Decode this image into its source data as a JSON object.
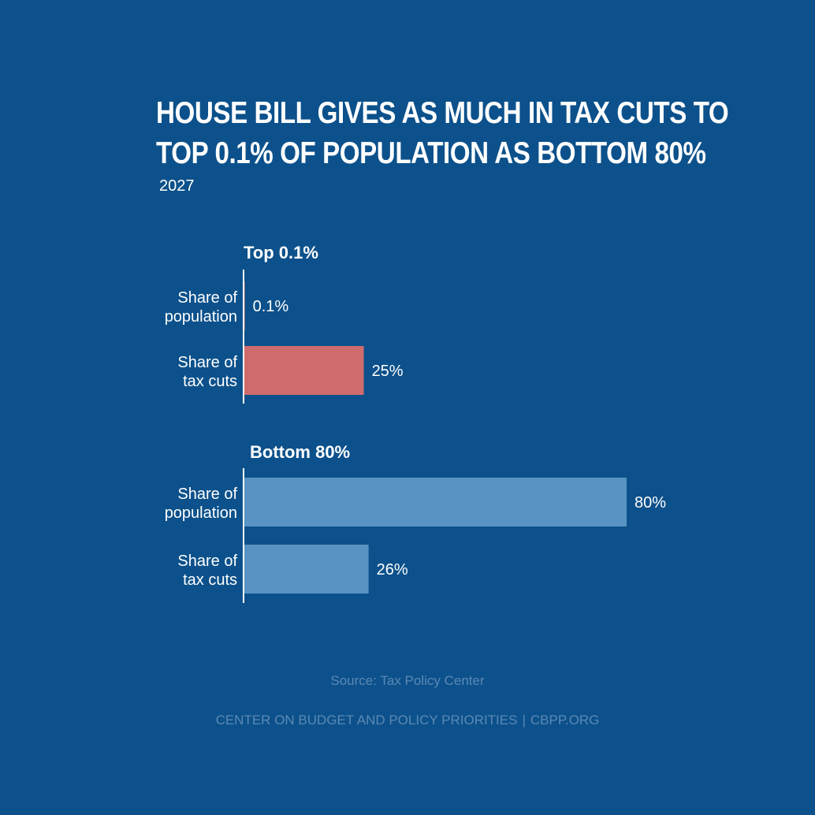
{
  "header": {
    "title_line1": "House Bill Gives As Much in Tax Cuts to",
    "title_line2": "Top 0.1% of Population As Bottom 80%",
    "subtitle": "2027"
  },
  "colors": {
    "background": "#0c518b",
    "highlight_bar": "#d06b6d",
    "standard_bar": "#5893c3",
    "text": "#ffffff",
    "muted_text": "#5b88b4"
  },
  "chart_data": {
    "type": "bar",
    "orientation": "horizontal",
    "title": "House Bill Gives As Much in Tax Cuts to Top 0.1% of Population As Bottom 80%",
    "subtitle": "2027",
    "xlim": [
      0,
      80
    ],
    "value_suffix": "%",
    "groups": [
      {
        "name": "Top 0.1%",
        "bars": [
          {
            "label_line1": "Share of",
            "label_line2": "population",
            "value": 0.1,
            "display": "0.1%",
            "color": "#d06b6d"
          },
          {
            "label_line1": "Share of",
            "label_line2": "tax cuts",
            "value": 25,
            "display": "25%",
            "color": "#d06b6d"
          }
        ]
      },
      {
        "name": "Bottom 80%",
        "bars": [
          {
            "label_line1": "Share of",
            "label_line2": "population",
            "value": 80,
            "display": "80%",
            "color": "#5893c3"
          },
          {
            "label_line1": "Share of",
            "label_line2": "tax cuts",
            "value": 26,
            "display": "26%",
            "color": "#5893c3"
          }
        ]
      }
    ]
  },
  "footer": {
    "source": "Source: Tax Policy Center",
    "org": "CENTER ON BUDGET AND POLICY PRIORITIES",
    "separator": "|",
    "site": "CBPP.ORG"
  }
}
